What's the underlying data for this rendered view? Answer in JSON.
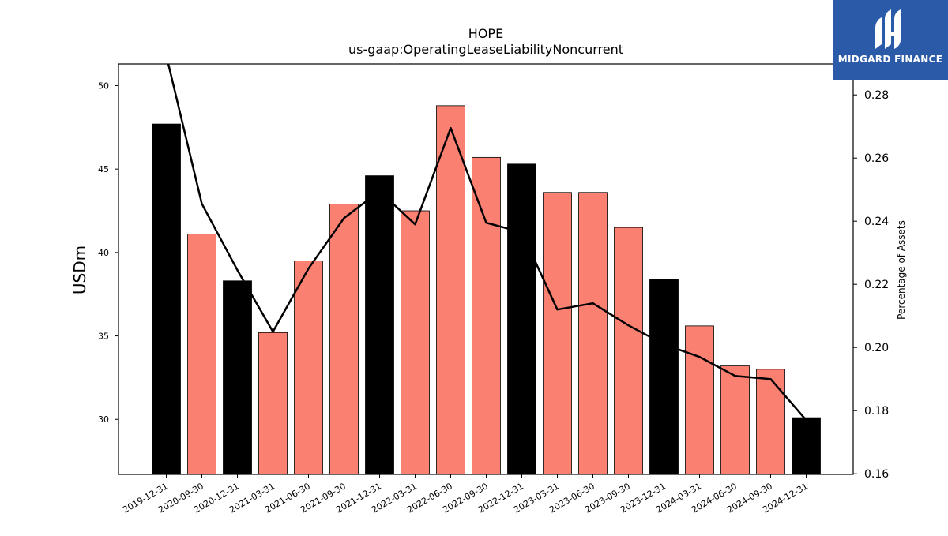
{
  "brand": {
    "name": "MIDGARD FINANCE",
    "color": "#2b5aa8"
  },
  "chart_data": {
    "type": "bar",
    "title": "HOPE",
    "subtitle": "us-gaap:OperatingLeaseLiabilityNoncurrent",
    "ylabel": "USDm",
    "y2label": "Percentage of Assets",
    "ylim": [
      26.7,
      51.3
    ],
    "y2lim": [
      0.1598,
      0.2898
    ],
    "yticks": [
      30,
      35,
      40,
      45,
      50
    ],
    "y2ticks": [
      0.16,
      0.18,
      0.2,
      0.22,
      0.24,
      0.26,
      0.28
    ],
    "categories": [
      "2019-12-31",
      "2020-09-30",
      "2020-12-31",
      "2021-03-31",
      "2021-06-30",
      "2021-09-30",
      "2021-12-31",
      "2022-03-31",
      "2022-06-30",
      "2022-09-30",
      "2022-12-31",
      "2023-03-31",
      "2023-06-30",
      "2023-09-30",
      "2023-12-31",
      "2024-03-31",
      "2024-06-30",
      "2024-09-30",
      "2024-12-31"
    ],
    "series": [
      {
        "type": "bar",
        "axis": "left",
        "values": [
          47.7,
          41.1,
          38.3,
          35.2,
          39.5,
          42.9,
          44.6,
          42.5,
          48.8,
          45.7,
          45.3,
          43.6,
          43.6,
          41.5,
          38.4,
          35.6,
          33.2,
          33.0,
          30.1
        ],
        "colors": [
          "#000000",
          "#fa8072",
          "#000000",
          "#fa8072",
          "#fa8072",
          "#fa8072",
          "#000000",
          "#fa8072",
          "#fa8072",
          "#fa8072",
          "#000000",
          "#fa8072",
          "#fa8072",
          "#fa8072",
          "#000000",
          "#fa8072",
          "#fa8072",
          "#fa8072",
          "#000000"
        ]
      },
      {
        "type": "line",
        "axis": "right",
        "color": "#000000",
        "values": [
          0.2925,
          0.2455,
          0.2245,
          0.205,
          0.225,
          0.241,
          0.2495,
          0.239,
          0.2695,
          0.2395,
          0.2365,
          0.212,
          0.214,
          0.207,
          0.201,
          0.197,
          0.191,
          0.19,
          0.177
        ]
      }
    ],
    "legend": "none",
    "grid": false
  }
}
